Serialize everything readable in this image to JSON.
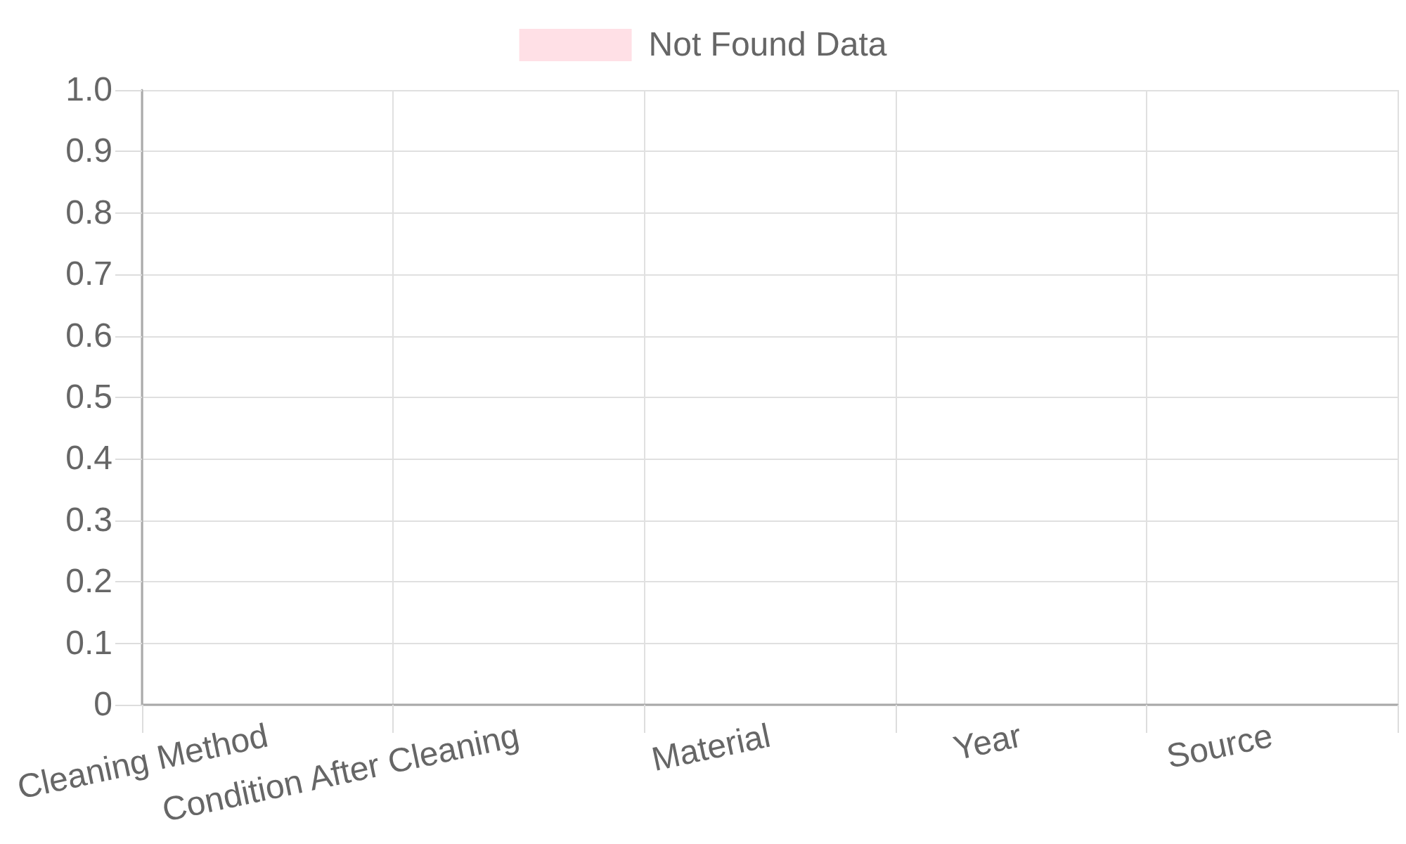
{
  "chart_data": {
    "type": "bar",
    "categories": [
      "Cleaning Method",
      "Condition After Cleaning",
      "Material",
      "Year",
      "Source"
    ],
    "series": [
      {
        "name": "Not Found Data",
        "color": "#ffe0e6",
        "values": [
          null,
          null,
          null,
          null,
          null
        ]
      }
    ],
    "ylim": [
      0,
      1
    ],
    "yticks": [
      0,
      0.1,
      0.2,
      0.3,
      0.4,
      0.5,
      0.6,
      0.7,
      0.8,
      0.9,
      {
        "value": 1,
        "label": "1.0"
      }
    ],
    "grid": true,
    "legend": "top"
  }
}
